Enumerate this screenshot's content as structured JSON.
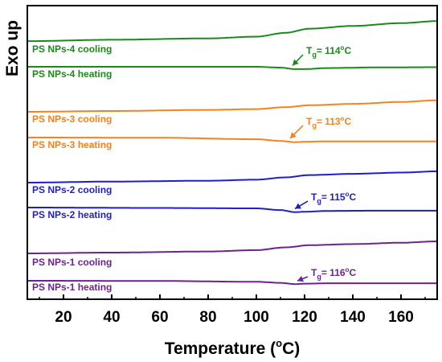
{
  "chart_data": {
    "type": "line",
    "xlabel": "Temperature (",
    "xlabel_sup": "o",
    "xlabel_unit": "C)",
    "ylabel": "Exo up",
    "xlim": [
      5,
      175
    ],
    "x_ticks": [
      "20",
      "40",
      "60",
      "80",
      "100",
      "120",
      "140",
      "160"
    ],
    "x_tick_values": [
      20,
      40,
      60,
      80,
      100,
      120,
      140,
      160
    ],
    "grid": false,
    "series": [
      {
        "name": "PS NPs-4 cooling",
        "color": "#1a8a1a",
        "points": [
          [
            5,
            0.2
          ],
          [
            40,
            0.6
          ],
          [
            80,
            1.0
          ],
          [
            100,
            1.5
          ],
          [
            112,
            2.6
          ],
          [
            122,
            3.8
          ],
          [
            140,
            4.6
          ],
          [
            160,
            5.4
          ],
          [
            175,
            6.0
          ]
        ]
      },
      {
        "name": "PS NPs-4 heating",
        "color": "#1a8a1a",
        "points": [
          [
            5,
            0.0
          ],
          [
            60,
            0.0
          ],
          [
            100,
            0.0
          ],
          [
            110,
            -0.4
          ],
          [
            116,
            -1.1
          ],
          [
            120,
            -1.1
          ],
          [
            130,
            -0.6
          ],
          [
            150,
            -0.3
          ],
          [
            175,
            -0.2
          ]
        ]
      },
      {
        "name": "PS NPs-3 cooling",
        "color": "#f5821e",
        "points": [
          [
            5,
            0.0
          ],
          [
            40,
            0.3
          ],
          [
            80,
            0.7
          ],
          [
            100,
            1.0
          ],
          [
            112,
            1.7
          ],
          [
            122,
            2.4
          ],
          [
            140,
            2.9
          ],
          [
            160,
            3.6
          ],
          [
            175,
            4.2
          ]
        ]
      },
      {
        "name": "PS NPs-3 heating",
        "color": "#f5821e",
        "points": [
          [
            5,
            0.0
          ],
          [
            60,
            -0.1
          ],
          [
            100,
            -0.8
          ],
          [
            110,
            -1.6
          ],
          [
            116,
            -2.2
          ],
          [
            120,
            -2.0
          ],
          [
            130,
            -1.8
          ],
          [
            150,
            -1.8
          ],
          [
            175,
            -1.8
          ]
        ]
      },
      {
        "name": "PS NPs-2 cooling",
        "color": "#1f1fc8",
        "points": [
          [
            5,
            0.0
          ],
          [
            40,
            0.5
          ],
          [
            80,
            0.9
          ],
          [
            100,
            1.4
          ],
          [
            112,
            2.5
          ],
          [
            122,
            3.6
          ],
          [
            140,
            4.2
          ],
          [
            160,
            4.8
          ],
          [
            175,
            5.4
          ]
        ]
      },
      {
        "name": "PS NPs-2 heating",
        "color": "#1f1fc8",
        "points": [
          [
            5,
            0.0
          ],
          [
            60,
            -0.2
          ],
          [
            100,
            -0.4
          ],
          [
            110,
            -1.2
          ],
          [
            116,
            -2.2
          ],
          [
            120,
            -2.0
          ],
          [
            130,
            -1.6
          ],
          [
            150,
            -1.5
          ],
          [
            175,
            -1.5
          ]
        ]
      },
      {
        "name": "PS NPs-1 cooling",
        "color": "#6b238e",
        "points": [
          [
            5,
            0.0
          ],
          [
            40,
            0.3
          ],
          [
            80,
            0.7
          ],
          [
            100,
            1.2
          ],
          [
            112,
            2.2
          ],
          [
            122,
            3.0
          ],
          [
            140,
            3.4
          ],
          [
            160,
            3.9
          ],
          [
            175,
            4.4
          ]
        ]
      },
      {
        "name": "PS NPs-1 heating",
        "color": "#6b238e",
        "points": [
          [
            5,
            0.0
          ],
          [
            60,
            -0.1
          ],
          [
            100,
            -0.5
          ],
          [
            110,
            -1.0
          ],
          [
            116,
            -1.6
          ],
          [
            120,
            -1.4
          ],
          [
            130,
            -1.2
          ],
          [
            150,
            -1.2
          ],
          [
            175,
            -1.2
          ]
        ]
      }
    ],
    "annotations": [
      {
        "text_main": "T",
        "text_sub": "g",
        "text_rest": "= 114",
        "text_sup": "o",
        "text_unit": "C",
        "color": "#1a8a1a",
        "x": 114,
        "series": "PS NPs-4 heating"
      },
      {
        "text_main": "T",
        "text_sub": "g",
        "text_rest": "= 113",
        "text_sup": "o",
        "text_unit": "C",
        "color": "#f5821e",
        "x": 113,
        "series": "PS NPs-3 heating"
      },
      {
        "text_main": "T",
        "text_sub": "g",
        "text_rest": "= 115",
        "text_sup": "o",
        "text_unit": "C",
        "color": "#1f1fc8",
        "x": 115,
        "series": "PS NPs-2 heating"
      },
      {
        "text_main": "T",
        "text_sub": "g",
        "text_rest": "= 116",
        "text_sup": "o",
        "text_unit": "C",
        "color": "#6b238e",
        "x": 116,
        "series": "PS NPs-1 heating"
      }
    ]
  }
}
